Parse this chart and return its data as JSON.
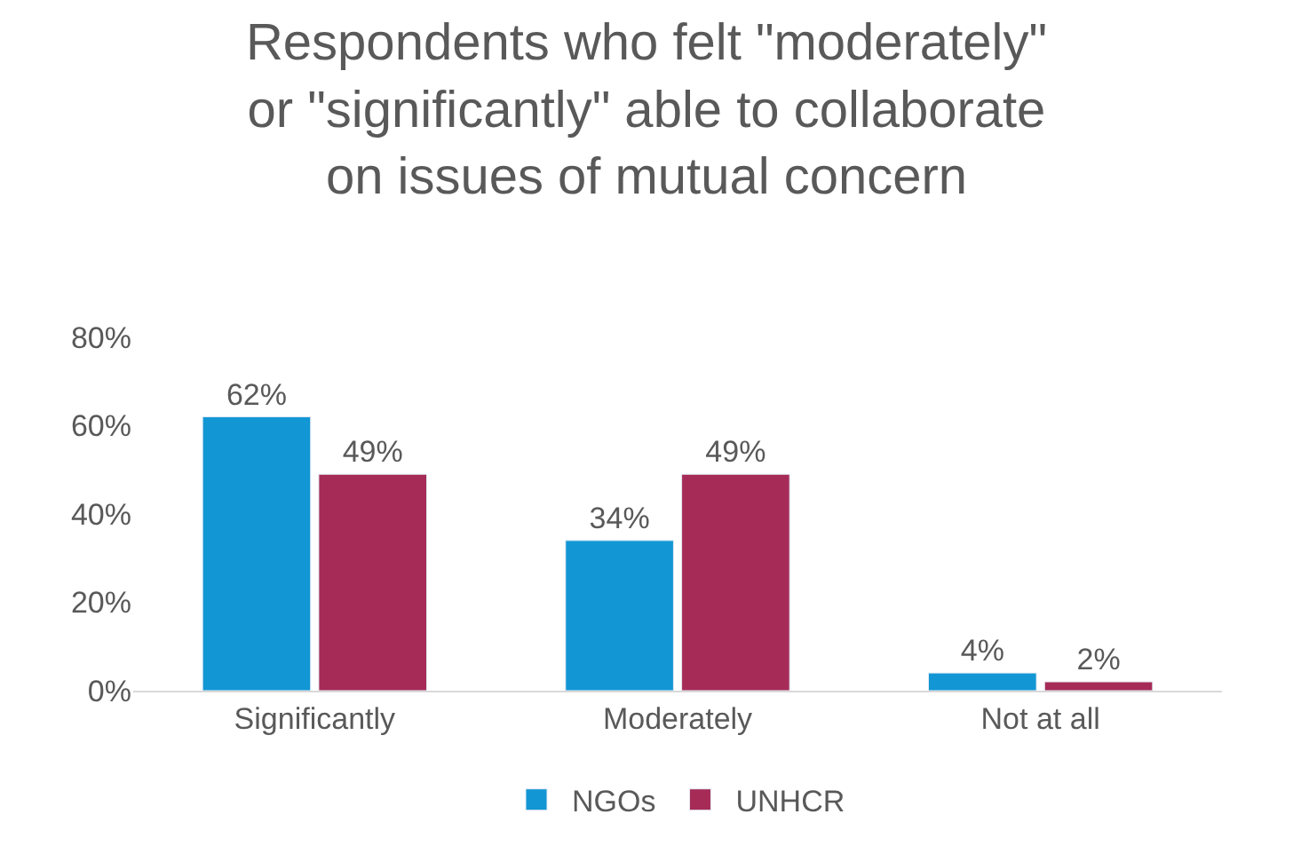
{
  "chart_data": {
    "type": "bar",
    "title": "Respondents who felt \"moderately\"\nor \"significantly\" able to collaborate\non issues of mutual concern",
    "categories": [
      "Significantly",
      "Moderately",
      "Not at all"
    ],
    "series": [
      {
        "name": "NGOs",
        "color": "#1296d4",
        "values": [
          62,
          34,
          4
        ],
        "value_labels": [
          "62%",
          "34%",
          "4%"
        ]
      },
      {
        "name": "UNHCR",
        "color": "#a62b57",
        "values": [
          49,
          49,
          2
        ],
        "value_labels": [
          "49%",
          "49%",
          "2%"
        ]
      }
    ],
    "ylim": [
      0,
      80
    ],
    "yticks": [
      {
        "value": 0,
        "label": "0%"
      },
      {
        "value": 20,
        "label": "20%"
      },
      {
        "value": 40,
        "label": "40%"
      },
      {
        "value": 60,
        "label": "60%"
      },
      {
        "value": 80,
        "label": "80%"
      }
    ],
    "grid": false,
    "legend": "bottom"
  }
}
